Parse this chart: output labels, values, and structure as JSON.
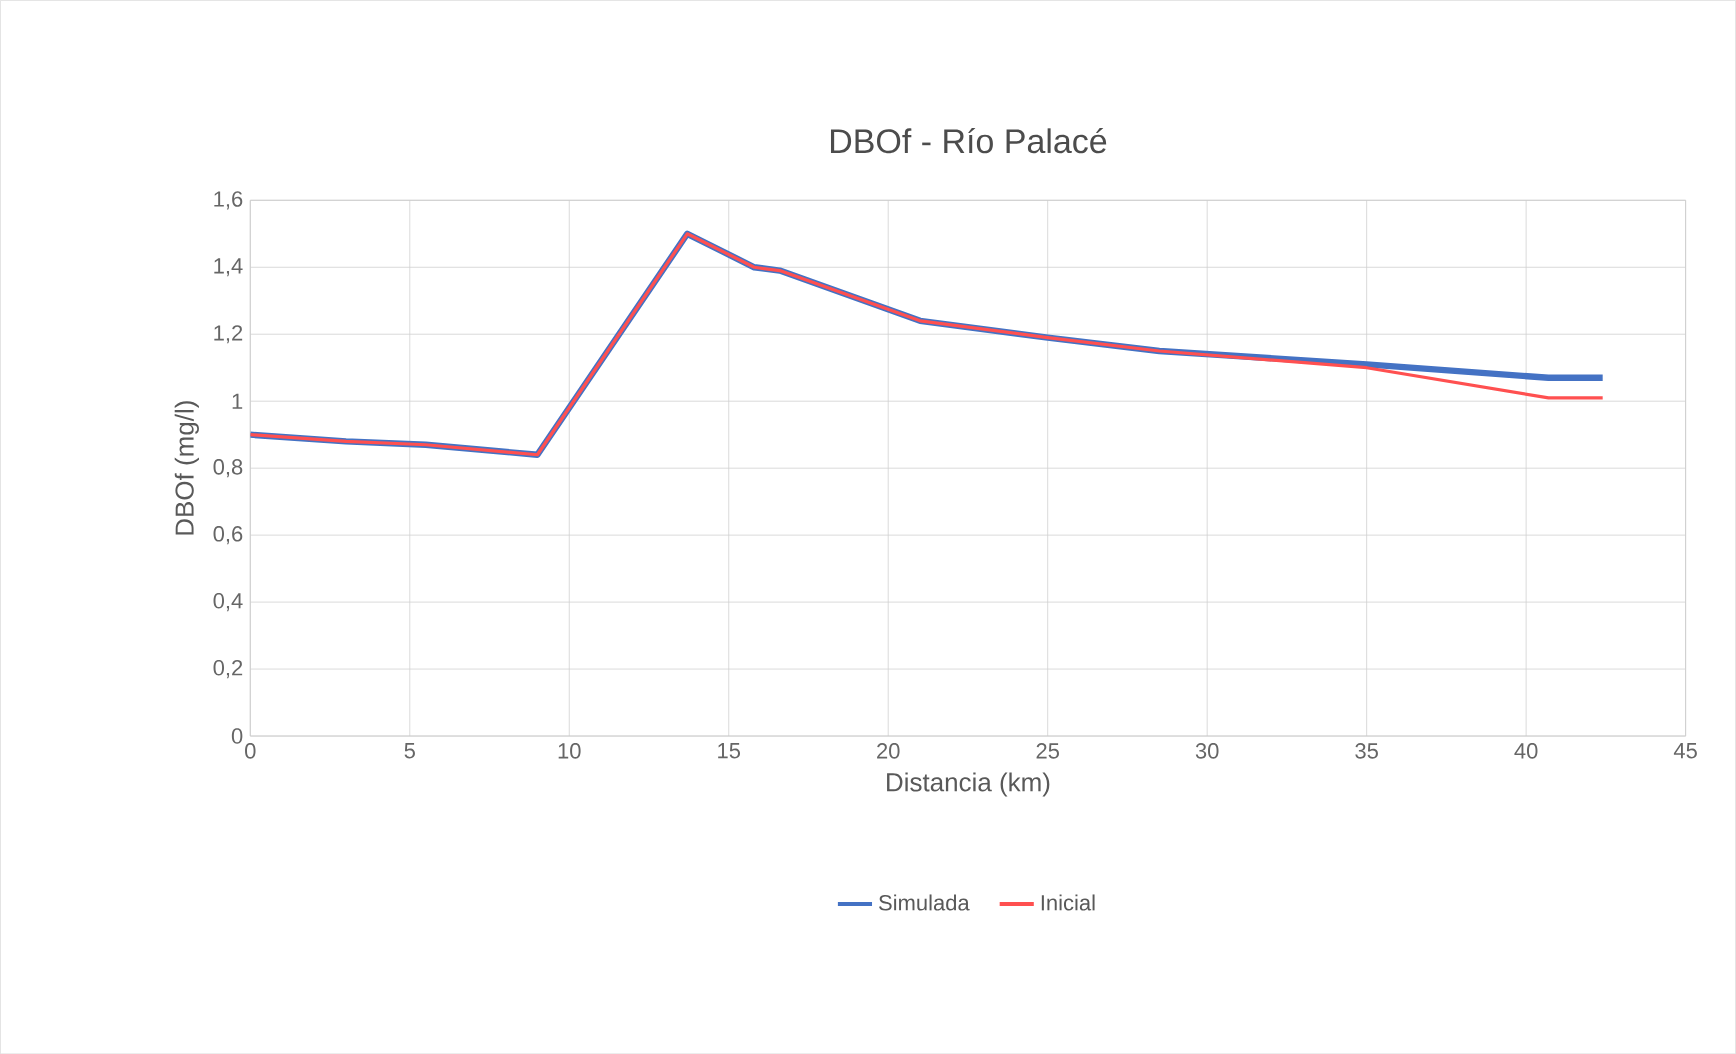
{
  "chart_data": {
    "type": "line",
    "title": "DBOf - Río Palacé",
    "xlabel": "Distancia (km)",
    "ylabel": "DBOf (mg/l)",
    "xlim": [
      0,
      45
    ],
    "xticks": [
      0,
      5,
      10,
      15,
      20,
      25,
      30,
      35,
      40,
      45
    ],
    "ylim": [
      0,
      1.6
    ],
    "yticks": [
      {
        "value": 0,
        "label": "0"
      },
      {
        "value": 0.2,
        "label": "0,2"
      },
      {
        "value": 0.4,
        "label": "0,4"
      },
      {
        "value": 0.6,
        "label": "0,6"
      },
      {
        "value": 0.8,
        "label": "0,8"
      },
      {
        "value": 1,
        "label": "1"
      },
      {
        "value": 1.2,
        "label": "1,2"
      },
      {
        "value": 1.4,
        "label": "1,4"
      },
      {
        "value": 1.6,
        "label": "1,6"
      }
    ],
    "grid": true,
    "legend": "bottom",
    "series": [
      {
        "name": "Simulada",
        "color": "#4472c4",
        "x": [
          0,
          3,
          5.5,
          9,
          13.7,
          15.8,
          16.6,
          21,
          25,
          28.5,
          35,
          40.7,
          42.4
        ],
        "values": [
          0.9,
          0.88,
          0.87,
          0.84,
          1.5,
          1.4,
          1.39,
          1.24,
          1.19,
          1.15,
          1.11,
          1.07,
          1.07
        ]
      },
      {
        "name": "Inicial",
        "color": "#ff5050",
        "x": [
          0,
          3,
          5.5,
          9,
          13.7,
          15.8,
          16.6,
          21,
          25,
          28.5,
          35,
          40.7,
          42.4
        ],
        "values": [
          0.9,
          0.88,
          0.87,
          0.84,
          1.5,
          1.4,
          1.39,
          1.24,
          1.19,
          1.15,
          1.1,
          1.01,
          1.01
        ]
      }
    ]
  }
}
